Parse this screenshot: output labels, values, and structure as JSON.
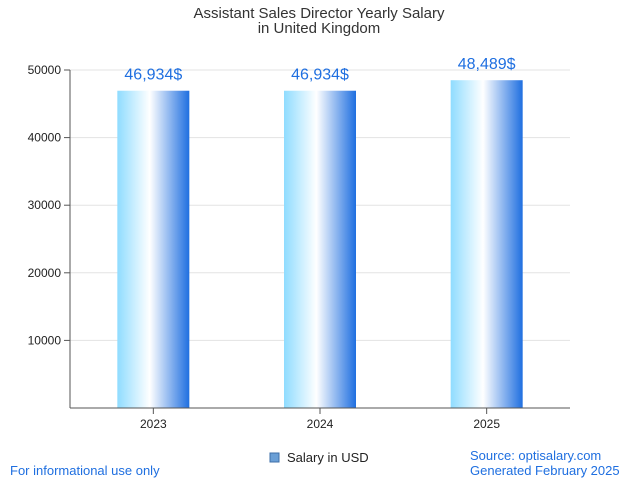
{
  "chart_data": {
    "type": "bar",
    "title_lines": [
      "Assistant Sales Director Yearly Salary",
      "in United Kingdom"
    ],
    "categories": [
      "2023",
      "2024",
      "2025"
    ],
    "series": [
      {
        "name": "Salary in USD",
        "values": [
          46934,
          46934,
          48489
        ],
        "data_labels": [
          "46,934$",
          "46,934$",
          "48,489$"
        ]
      }
    ],
    "ylim": [
      0,
      50000
    ],
    "yticks": [
      10000,
      20000,
      30000,
      40000,
      50000
    ],
    "grid": true,
    "legend_position": "bottom-center",
    "colors": {
      "bar_light": "#8fdcff",
      "bar_mid": "#ffffff",
      "bar_dark": "#1f6fe0",
      "label": "#1f6fe0",
      "legend_swatch": "#6a9fd6"
    }
  },
  "footer": {
    "left": "For informational use only",
    "source": "Source: optisalary.com",
    "generated": "Generated February 2025"
  }
}
